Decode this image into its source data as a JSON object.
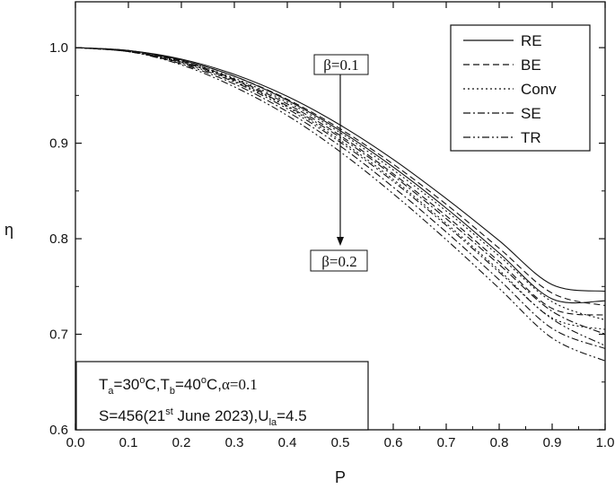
{
  "chart_data": {
    "type": "line",
    "xlabel": "P",
    "ylabel": "η",
    "xlim": [
      0.0,
      1.0
    ],
    "ylim": [
      0.6,
      1.05
    ],
    "xticks": [
      "0.0",
      "0.1",
      "0.2",
      "0.3",
      "0.4",
      "0.5",
      "0.6",
      "0.7",
      "0.8",
      "0.9",
      "1.0"
    ],
    "yticks": [
      "0.6",
      "0.7",
      "0.8",
      "0.9",
      "1.0"
    ],
    "grid": false,
    "legend": {
      "placement": "top-right",
      "entries": [
        {
          "label": "RE",
          "dash": "solid"
        },
        {
          "label": "BE",
          "dash": "dashed"
        },
        {
          "label": "Conv",
          "dash": "dotted"
        },
        {
          "label": "SE",
          "dash": "dash-dot"
        },
        {
          "label": "TR",
          "dash": "dash-dot-dot"
        }
      ]
    },
    "groups": [
      {
        "beta": "β=0.1",
        "series": [
          {
            "legend": "RE",
            "x": [
              0,
              0.1,
              0.2,
              0.3,
              0.4,
              0.5,
              0.6,
              0.7,
              0.8,
              0.9,
              1.0
            ],
            "y": [
              1.0,
              0.997,
              0.988,
              0.972,
              0.949,
              0.919,
              0.883,
              0.842,
              0.798,
              0.752,
              0.745
            ]
          },
          {
            "legend": "BE",
            "x": [
              0,
              0.1,
              0.2,
              0.3,
              0.4,
              0.5,
              0.6,
              0.7,
              0.8,
              0.9,
              1.0
            ],
            "y": [
              1.0,
              0.997,
              0.987,
              0.97,
              0.946,
              0.915,
              0.878,
              0.836,
              0.79,
              0.743,
              0.73
            ]
          },
          {
            "legend": "Conv",
            "x": [
              0,
              0.1,
              0.2,
              0.3,
              0.4,
              0.5,
              0.6,
              0.7,
              0.8,
              0.9,
              1.0
            ],
            "y": [
              1.0,
              0.996,
              0.986,
              0.968,
              0.943,
              0.911,
              0.872,
              0.829,
              0.782,
              0.734,
              0.715
            ]
          },
          {
            "legend": "SE",
            "x": [
              0,
              0.1,
              0.2,
              0.3,
              0.4,
              0.5,
              0.6,
              0.7,
              0.8,
              0.9,
              1.0
            ],
            "y": [
              1.0,
              0.996,
              0.985,
              0.966,
              0.939,
              0.906,
              0.866,
              0.821,
              0.773,
              0.724,
              0.7
            ]
          },
          {
            "legend": "TR",
            "x": [
              0,
              0.1,
              0.2,
              0.3,
              0.4,
              0.5,
              0.6,
              0.7,
              0.8,
              0.9,
              1.0
            ],
            "y": [
              1.0,
              0.996,
              0.984,
              0.964,
              0.936,
              0.901,
              0.86,
              0.814,
              0.765,
              0.716,
              0.688
            ]
          }
        ]
      },
      {
        "beta": "β=0.2",
        "series": [
          {
            "legend": "RE",
            "x": [
              0,
              0.1,
              0.2,
              0.3,
              0.4,
              0.5,
              0.6,
              0.7,
              0.8,
              0.9,
              1.0
            ],
            "y": [
              1.0,
              0.997,
              0.987,
              0.97,
              0.945,
              0.913,
              0.875,
              0.832,
              0.785,
              0.737,
              0.735
            ]
          },
          {
            "legend": "BE",
            "x": [
              0,
              0.1,
              0.2,
              0.3,
              0.4,
              0.5,
              0.6,
              0.7,
              0.8,
              0.9,
              1.0
            ],
            "y": [
              1.0,
              0.996,
              0.986,
              0.967,
              0.941,
              0.908,
              0.868,
              0.824,
              0.776,
              0.727,
              0.72
            ]
          },
          {
            "legend": "Conv",
            "x": [
              0,
              0.1,
              0.2,
              0.3,
              0.4,
              0.5,
              0.6,
              0.7,
              0.8,
              0.9,
              1.0
            ],
            "y": [
              1.0,
              0.996,
              0.985,
              0.965,
              0.938,
              0.903,
              0.862,
              0.816,
              0.767,
              0.717,
              0.705
            ]
          },
          {
            "legend": "SE",
            "x": [
              0,
              0.1,
              0.2,
              0.3,
              0.4,
              0.5,
              0.6,
              0.7,
              0.8,
              0.9,
              1.0
            ],
            "y": [
              1.0,
              0.996,
              0.983,
              0.962,
              0.933,
              0.897,
              0.854,
              0.807,
              0.757,
              0.706,
              0.685
            ]
          },
          {
            "legend": "TR",
            "x": [
              0,
              0.1,
              0.2,
              0.3,
              0.4,
              0.5,
              0.6,
              0.7,
              0.8,
              0.9,
              1.0
            ],
            "y": [
              1.0,
              0.996,
              0.982,
              0.959,
              0.929,
              0.891,
              0.847,
              0.799,
              0.748,
              0.696,
              0.672
            ]
          }
        ]
      }
    ],
    "annotations": {
      "beta_top": "β=0.1",
      "beta_bottom": "β=0.2",
      "arrow_x": 0.5
    },
    "conditions": {
      "line1": {
        "t": "T",
        "a_sub": "a",
        "eq1": "=30",
        "deg": "o",
        "c1": "C,",
        "t2": "T",
        "b_sub": "b",
        "eq2": "=40",
        "deg2": "o",
        "c2": "C,",
        "alpha": "α=0.1"
      },
      "line2": {
        "s": "S=456(21",
        "st": "st",
        "date": " June 2023),U",
        "la": "la",
        "u": "=4.5"
      }
    }
  }
}
